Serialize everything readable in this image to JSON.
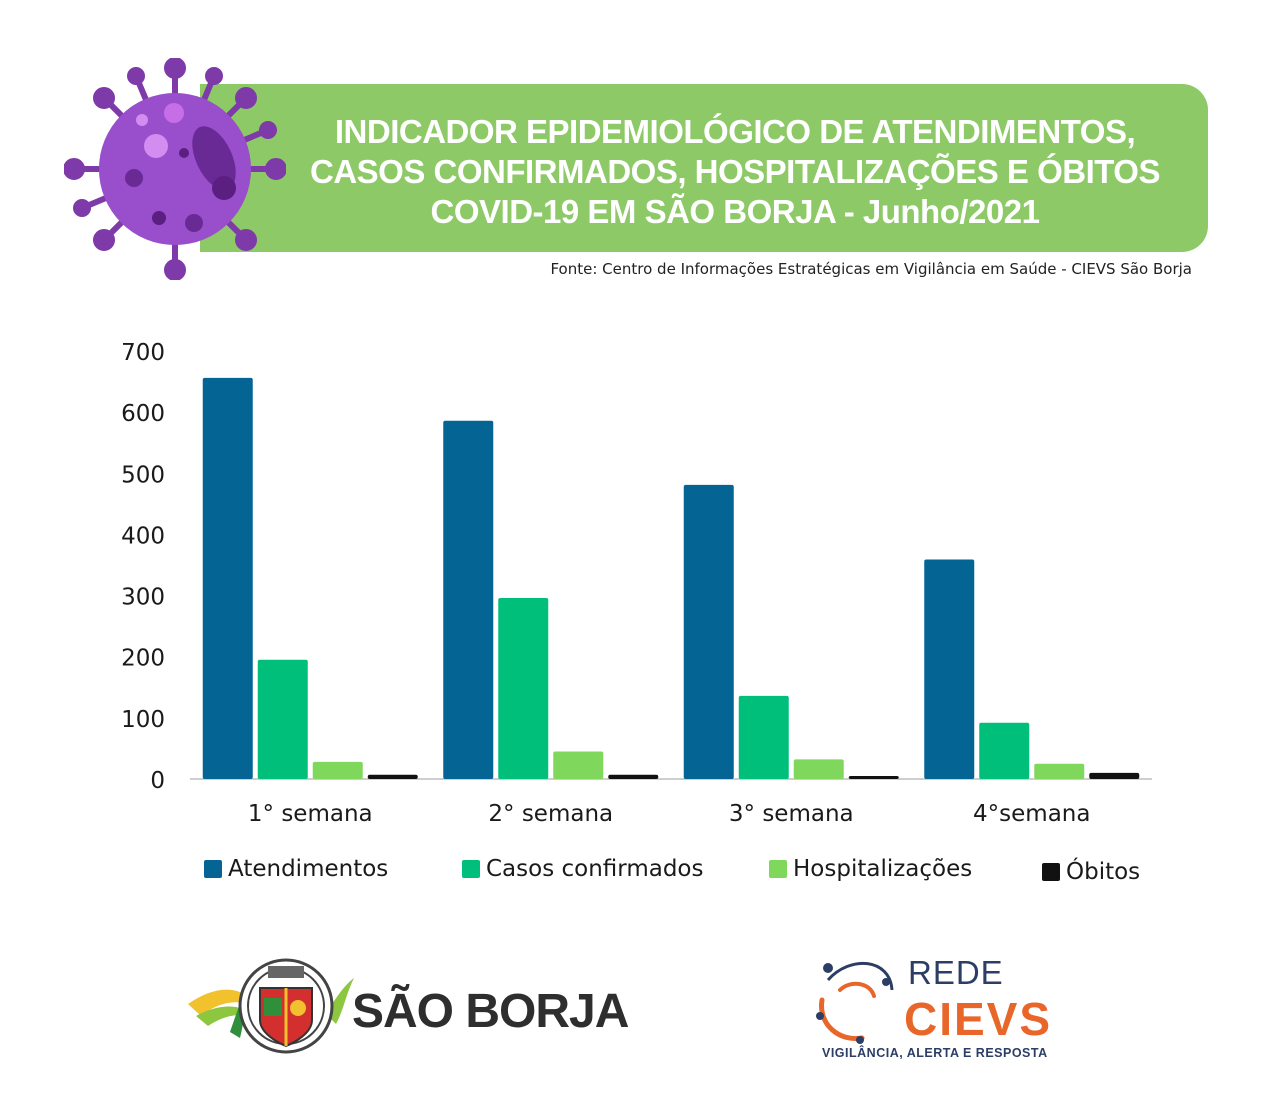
{
  "header": {
    "title_lines": [
      "INDICADOR EPIDEMIOLÓGICO DE ATENDIMENTOS,",
      "CASOS CONFIRMADOS, HOSPITALIZAÇÕES E ÓBITOS",
      "COVID-19  EM SÃO BORJA - Junho/2021"
    ],
    "source": "Fonte: Centro de Informações Estratégicas em Vigilância em Saúde - CIEVS São Borja"
  },
  "chart_data": {
    "type": "bar",
    "title": "INDICADOR EPIDEMIOLÓGICO DE ATENDIMENTOS, CASOS CONFIRMADOS, HOSPITALIZAÇÕES E ÓBITOS COVID-19  EM SÃO BORJA - Junho/2021",
    "categories": [
      "1° semana",
      "2° semana",
      "3° semana",
      "4°semana"
    ],
    "series": [
      {
        "name": "Atendimentos",
        "values": [
          656,
          586,
          481,
          359
        ],
        "color": "#046595"
      },
      {
        "name": "Casos confirmados",
        "values": [
          195,
          296,
          136,
          92
        ],
        "color": "#00bf7b"
      },
      {
        "name": "Hospitalizações",
        "values": [
          28,
          45,
          32,
          25
        ],
        "color": "#7fd85c"
      },
      {
        "name": "Óbitos",
        "values": [
          7,
          7,
          5,
          10
        ],
        "color": "#111111"
      }
    ],
    "ylim": [
      0,
      700
    ],
    "yticks": [
      0,
      100,
      200,
      300,
      400,
      500,
      600,
      700
    ],
    "grid": false,
    "legend": "bottom"
  },
  "logos": {
    "sao_borja": "SÃO BORJA",
    "rede": "REDE",
    "cievs": "CIEVS",
    "cievs_tagline": "VIGILÂNCIA, ALERTA E RESPOSTA"
  }
}
